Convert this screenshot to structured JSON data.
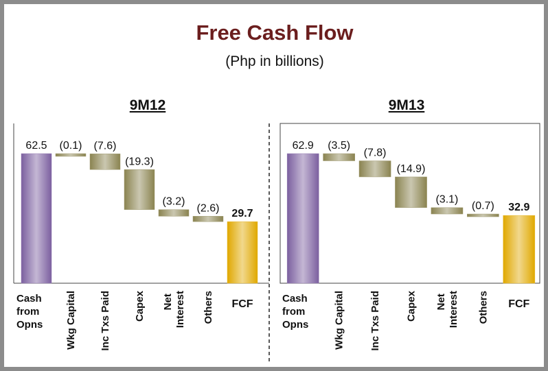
{
  "title": "Free Cash Flow",
  "subtitle": "(Php in billions)",
  "chart_data": [
    {
      "type": "waterfall",
      "title": "9M12",
      "categories": [
        "Cash from Opns",
        "Wkg Capital",
        "Inc Txs Paid",
        "Capex",
        "Net Interest",
        "Others",
        "FCF"
      ],
      "values": [
        62.5,
        -0.1,
        -7.6,
        -19.3,
        -3.2,
        -2.6,
        29.7
      ],
      "value_labels": [
        "62.5",
        "(0.1)",
        "(7.6)",
        "(19.3)",
        "(3.2)",
        "(2.6)",
        "29.7"
      ],
      "colors": [
        "#7b5f9f",
        "#8a8350",
        "#8a8350",
        "#8a8350",
        "#8a8350",
        "#8a8350",
        "#e0a800"
      ]
    },
    {
      "type": "waterfall",
      "title": "9M13",
      "categories": [
        "Cash from Opns",
        "Wkg Capital",
        "Inc Txs Paid",
        "Capex",
        "Net Interest",
        "Others",
        "FCF"
      ],
      "values": [
        62.9,
        -3.5,
        -7.8,
        -14.9,
        -3.1,
        -0.7,
        32.9
      ],
      "value_labels": [
        "62.9",
        "(3.5)",
        "(7.8)",
        "(14.9)",
        "(3.1)",
        "(0.7)",
        "32.9"
      ],
      "colors": [
        "#7b5f9f",
        "#8a8350",
        "#8a8350",
        "#8a8350",
        "#8a8350",
        "#8a8350",
        "#e0a800"
      ]
    }
  ]
}
